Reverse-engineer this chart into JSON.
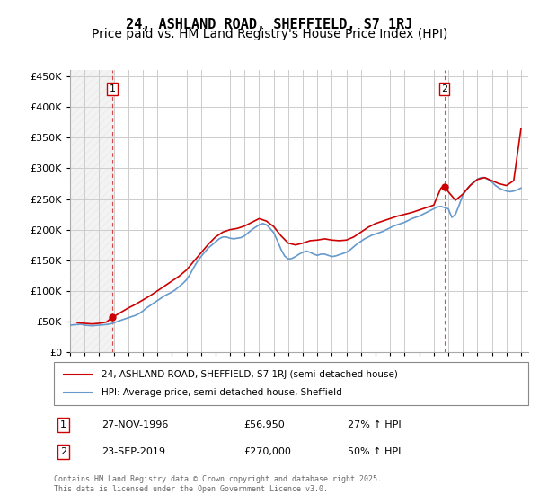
{
  "title": "24, ASHLAND ROAD, SHEFFIELD, S7 1RJ",
  "subtitle": "Price paid vs. HM Land Registry's House Price Index (HPI)",
  "ylabel_format": "£{0}K",
  "ylim": [
    0,
    460000
  ],
  "yticks": [
    0,
    50000,
    100000,
    150000,
    200000,
    250000,
    300000,
    350000,
    400000,
    450000
  ],
  "ytick_labels": [
    "£0",
    "£50K",
    "£100K",
    "£150K",
    "£200K",
    "£250K",
    "£300K",
    "£350K",
    "£400K",
    "£450K"
  ],
  "xlim_start": 1994.0,
  "xlim_end": 2025.5,
  "sale1_x": 1996.91,
  "sale1_y": 56950,
  "sale1_label": "1",
  "sale2_x": 2019.73,
  "sale2_y": 270000,
  "sale2_label": "2",
  "legend_line1": "24, ASHLAND ROAD, SHEFFIELD, S7 1RJ (semi-detached house)",
  "legend_line2": "HPI: Average price, semi-detached house, Sheffield",
  "annotation1_box": "1",
  "annotation1_date": "27-NOV-1996",
  "annotation1_price": "£56,950",
  "annotation1_hpi": "27% ↑ HPI",
  "annotation2_box": "2",
  "annotation2_date": "23-SEP-2019",
  "annotation2_price": "£270,000",
  "annotation2_hpi": "50% ↑ HPI",
  "footer": "Contains HM Land Registry data © Crown copyright and database right 2025.\nThis data is licensed under the Open Government Licence v3.0.",
  "line_color_red": "#cc0000",
  "line_color_blue": "#6699cc",
  "sale_marker_color": "#cc0000",
  "grid_color": "#cccccc",
  "hatched_region_color": "#dddddd",
  "background_color": "#ffffff",
  "title_fontsize": 11,
  "subtitle_fontsize": 10,
  "hpi_data": {
    "years": [
      1994.0,
      1994.25,
      1994.5,
      1994.75,
      1995.0,
      1995.25,
      1995.5,
      1995.75,
      1996.0,
      1996.25,
      1996.5,
      1996.75,
      1997.0,
      1997.25,
      1997.5,
      1997.75,
      1998.0,
      1998.25,
      1998.5,
      1998.75,
      1999.0,
      1999.25,
      1999.5,
      1999.75,
      2000.0,
      2000.25,
      2000.5,
      2000.75,
      2001.0,
      2001.25,
      2001.5,
      2001.75,
      2002.0,
      2002.25,
      2002.5,
      2002.75,
      2003.0,
      2003.25,
      2003.5,
      2003.75,
      2004.0,
      2004.25,
      2004.5,
      2004.75,
      2005.0,
      2005.25,
      2005.5,
      2005.75,
      2006.0,
      2006.25,
      2006.5,
      2006.75,
      2007.0,
      2007.25,
      2007.5,
      2007.75,
      2008.0,
      2008.25,
      2008.5,
      2008.75,
      2009.0,
      2009.25,
      2009.5,
      2009.75,
      2010.0,
      2010.25,
      2010.5,
      2010.75,
      2011.0,
      2011.25,
      2011.5,
      2011.75,
      2012.0,
      2012.25,
      2012.5,
      2012.75,
      2013.0,
      2013.25,
      2013.5,
      2013.75,
      2014.0,
      2014.25,
      2014.5,
      2014.75,
      2015.0,
      2015.25,
      2015.5,
      2015.75,
      2016.0,
      2016.25,
      2016.5,
      2016.75,
      2017.0,
      2017.25,
      2017.5,
      2017.75,
      2018.0,
      2018.25,
      2018.5,
      2018.75,
      2019.0,
      2019.25,
      2019.5,
      2019.75,
      2020.0,
      2020.25,
      2020.5,
      2020.75,
      2021.0,
      2021.25,
      2021.5,
      2021.75,
      2022.0,
      2022.25,
      2022.5,
      2022.75,
      2023.0,
      2023.25,
      2023.5,
      2023.75,
      2024.0,
      2024.25,
      2024.5,
      2024.75,
      2025.0
    ],
    "values": [
      44000,
      44500,
      45000,
      45500,
      44000,
      43500,
      43000,
      43500,
      44000,
      44500,
      45000,
      46000,
      47500,
      50000,
      52000,
      54000,
      56000,
      58000,
      60000,
      63000,
      67000,
      72000,
      76000,
      80000,
      84000,
      88000,
      92000,
      95000,
      98000,
      102000,
      107000,
      112000,
      118000,
      127000,
      138000,
      148000,
      156000,
      163000,
      170000,
      175000,
      180000,
      185000,
      188000,
      188000,
      186000,
      185000,
      186000,
      187000,
      190000,
      195000,
      200000,
      204000,
      208000,
      210000,
      208000,
      202000,
      195000,
      182000,
      168000,
      157000,
      152000,
      153000,
      156000,
      160000,
      163000,
      165000,
      163000,
      160000,
      158000,
      160000,
      160000,
      158000,
      156000,
      157000,
      159000,
      161000,
      163000,
      167000,
      172000,
      177000,
      181000,
      185000,
      188000,
      191000,
      193000,
      195000,
      197000,
      200000,
      203000,
      206000,
      208000,
      210000,
      212000,
      215000,
      218000,
      220000,
      222000,
      225000,
      228000,
      231000,
      234000,
      237000,
      238000,
      236000,
      234000,
      220000,
      225000,
      240000,
      256000,
      265000,
      272000,
      278000,
      282000,
      285000,
      285000,
      282000,
      278000,
      272000,
      268000,
      265000,
      263000,
      262000,
      263000,
      265000,
      268000
    ]
  },
  "price_data": {
    "years": [
      1994.5,
      1995.0,
      1995.5,
      1996.0,
      1996.5,
      1996.91,
      1997.0,
      1997.5,
      1998.0,
      1998.5,
      1999.0,
      1999.5,
      2000.0,
      2000.5,
      2001.0,
      2001.5,
      2002.0,
      2002.5,
      2003.0,
      2003.5,
      2004.0,
      2004.5,
      2005.0,
      2005.5,
      2006.0,
      2006.5,
      2007.0,
      2007.5,
      2008.0,
      2008.5,
      2009.0,
      2009.5,
      2010.0,
      2010.5,
      2011.0,
      2011.5,
      2012.0,
      2012.5,
      2013.0,
      2013.5,
      2014.0,
      2014.5,
      2015.0,
      2015.5,
      2016.0,
      2016.5,
      2017.0,
      2017.5,
      2018.0,
      2018.5,
      2019.0,
      2019.5,
      2019.73,
      2020.0,
      2020.5,
      2021.0,
      2021.5,
      2022.0,
      2022.5,
      2023.0,
      2023.5,
      2024.0,
      2024.5,
      2025.0
    ],
    "values": [
      48000,
      47000,
      46000,
      47000,
      49000,
      56950,
      58000,
      65000,
      72000,
      78000,
      85000,
      92000,
      100000,
      108000,
      116000,
      124000,
      134000,
      148000,
      162000,
      176000,
      188000,
      196000,
      200000,
      202000,
      206000,
      212000,
      218000,
      214000,
      205000,
      190000,
      178000,
      175000,
      178000,
      182000,
      183000,
      185000,
      183000,
      182000,
      183000,
      188000,
      196000,
      204000,
      210000,
      214000,
      218000,
      222000,
      225000,
      228000,
      232000,
      236000,
      240000,
      268000,
      270000,
      262000,
      248000,
      258000,
      272000,
      282000,
      285000,
      280000,
      275000,
      272000,
      280000,
      365000
    ]
  }
}
